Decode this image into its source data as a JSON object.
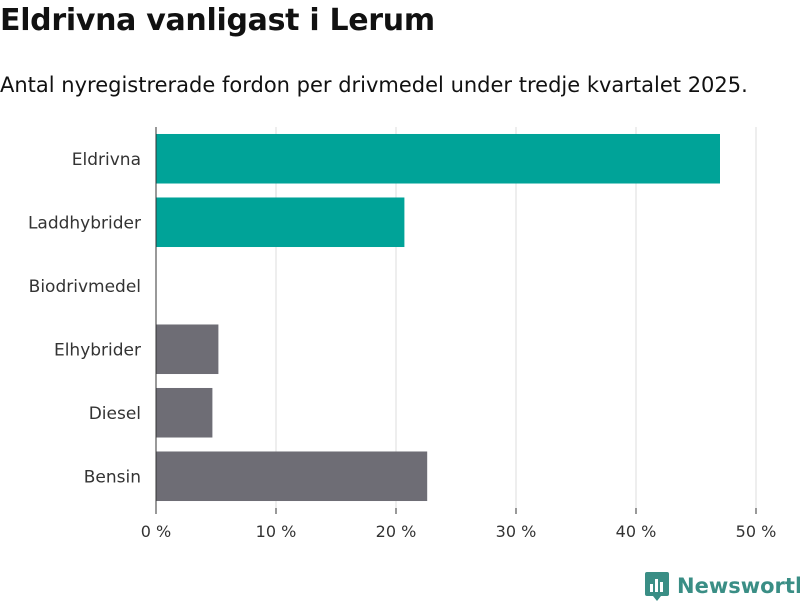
{
  "title": "Eldrivna vanligast i Lerum",
  "subtitle": "Antal nyregistrerade fordon per drivmedel under tredje kvartalet 2025.",
  "brand": {
    "name": "Newsworthy",
    "color": "#3a8e85"
  },
  "colors": {
    "highlight": "#00a398",
    "other": "#6e6d75",
    "grid": "#dddddd"
  },
  "chart_data": {
    "type": "bar",
    "orientation": "horizontal",
    "title": "Eldrivna vanligast i Lerum",
    "subtitle": "Antal nyregistrerade fordon per drivmedel under tredje kvartalet 2025.",
    "categories": [
      "Eldrivna",
      "Laddhybrider",
      "Biodrivmedel",
      "Elhybrider",
      "Diesel",
      "Bensin"
    ],
    "values": [
      47.0,
      20.7,
      0,
      5.2,
      4.7,
      22.6
    ],
    "highlighted": [
      true,
      true,
      true,
      false,
      false,
      false
    ],
    "xlim": [
      0,
      50
    ],
    "xticks": [
      0,
      10,
      20,
      30,
      40,
      50
    ],
    "xtick_labels": [
      "0 %",
      "10 %",
      "20 %",
      "30 %",
      "40 %",
      "50 %"
    ],
    "xlabel": "",
    "ylabel": "",
    "grid": true,
    "legend": "none"
  }
}
